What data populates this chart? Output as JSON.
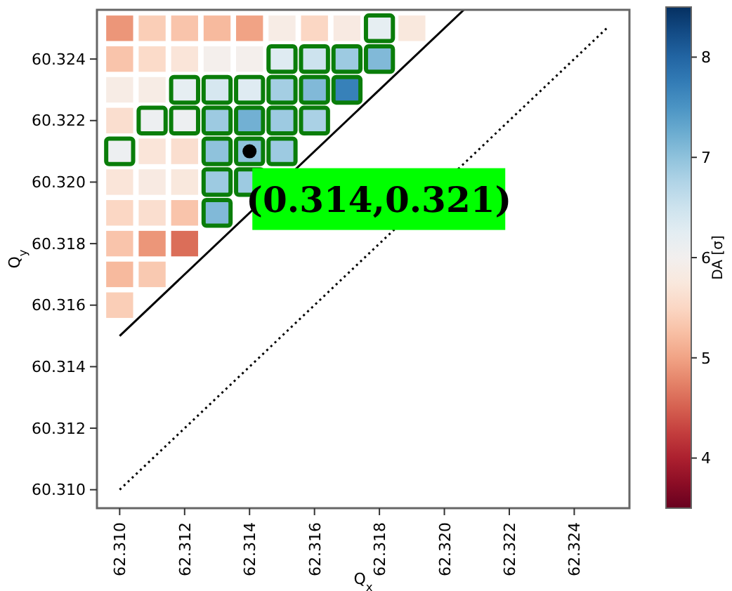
{
  "chart_data": {
    "type": "heatmap",
    "xlabel": "Q$_{x}$",
    "ylabel": "Q$_{y}$",
    "clabel": "DA [σ]",
    "x": [
      62.31,
      62.311,
      62.312,
      62.313,
      62.314,
      62.315,
      62.316,
      62.317,
      62.318,
      62.319
    ],
    "y": [
      60.325,
      60.324,
      60.323,
      60.322,
      60.321,
      60.32,
      60.319,
      60.318,
      60.317,
      60.316
    ],
    "cells": [
      [
        4.9,
        5.4,
        5.3,
        5.2,
        5.0,
        5.85,
        5.5,
        5.8,
        6.2,
        5.75
      ],
      [
        5.3,
        5.55,
        5.7,
        5.95,
        5.95,
        6.3,
        6.5,
        6.9,
        7.1,
        null
      ],
      [
        5.85,
        5.85,
        6.2,
        6.4,
        6.3,
        6.85,
        7.1,
        7.7,
        null,
        null
      ],
      [
        5.6,
        6.1,
        6.1,
        6.9,
        7.2,
        6.9,
        6.8,
        null,
        null,
        null
      ],
      [
        6.1,
        5.7,
        5.6,
        7.0,
        7.0,
        6.9,
        null,
        null,
        null,
        null
      ],
      [
        5.7,
        5.8,
        5.75,
        6.9,
        6.9,
        null,
        null,
        null,
        null,
        null
      ],
      [
        5.5,
        5.6,
        5.3,
        7.1,
        null,
        null,
        null,
        null,
        null,
        null
      ],
      [
        5.3,
        4.9,
        4.6,
        null,
        null,
        null,
        null,
        null,
        null,
        null
      ],
      [
        5.2,
        5.35,
        null,
        null,
        null,
        null,
        null,
        null,
        null,
        null
      ],
      [
        5.4,
        null,
        null,
        null,
        null,
        null,
        null,
        null,
        null,
        null
      ]
    ],
    "clim": [
      3.5,
      8.5
    ],
    "cticks": [
      4,
      5,
      6,
      7,
      8
    ],
    "xlim": [
      62.3093,
      62.3257
    ],
    "ylim": [
      60.3094,
      60.3256
    ],
    "xticks": [
      {
        "value": 62.31,
        "label": "62.310"
      },
      {
        "value": 62.312,
        "label": "62.312"
      },
      {
        "value": 62.314,
        "label": "62.314"
      },
      {
        "value": 62.316,
        "label": "62.316"
      },
      {
        "value": 62.318,
        "label": "62.318"
      },
      {
        "value": 62.32,
        "label": "62.320"
      },
      {
        "value": 62.322,
        "label": "62.322"
      },
      {
        "value": 62.324,
        "label": "62.324"
      }
    ],
    "yticks": [
      {
        "value": 60.31,
        "label": "60.310"
      },
      {
        "value": 60.312,
        "label": "60.312"
      },
      {
        "value": 60.314,
        "label": "60.314"
      },
      {
        "value": 60.316,
        "label": "60.316"
      },
      {
        "value": 60.318,
        "label": "60.318"
      },
      {
        "value": 60.32,
        "label": "60.320"
      },
      {
        "value": 60.322,
        "label": "60.322"
      },
      {
        "value": 60.324,
        "label": "60.324"
      }
    ],
    "series": [
      {
        "type": "line",
        "color": "#000000",
        "line_style": "solid",
        "x": [
          62.31,
          62.3206
        ],
        "values": [
          60.315,
          60.3256
        ]
      },
      {
        "type": "line",
        "color": "#000000",
        "line_style": "dotted",
        "x": [
          62.31,
          62.325
        ],
        "values": [
          60.31,
          60.325
        ]
      },
      {
        "type": "scatter",
        "color": "#000000",
        "marker": "circle",
        "x": [
          62.314
        ],
        "values": [
          60.321
        ]
      }
    ],
    "annotations": [
      {
        "text": "(0.314,0.321)",
        "x": 62.314,
        "y": 60.321
      }
    ]
  }
}
